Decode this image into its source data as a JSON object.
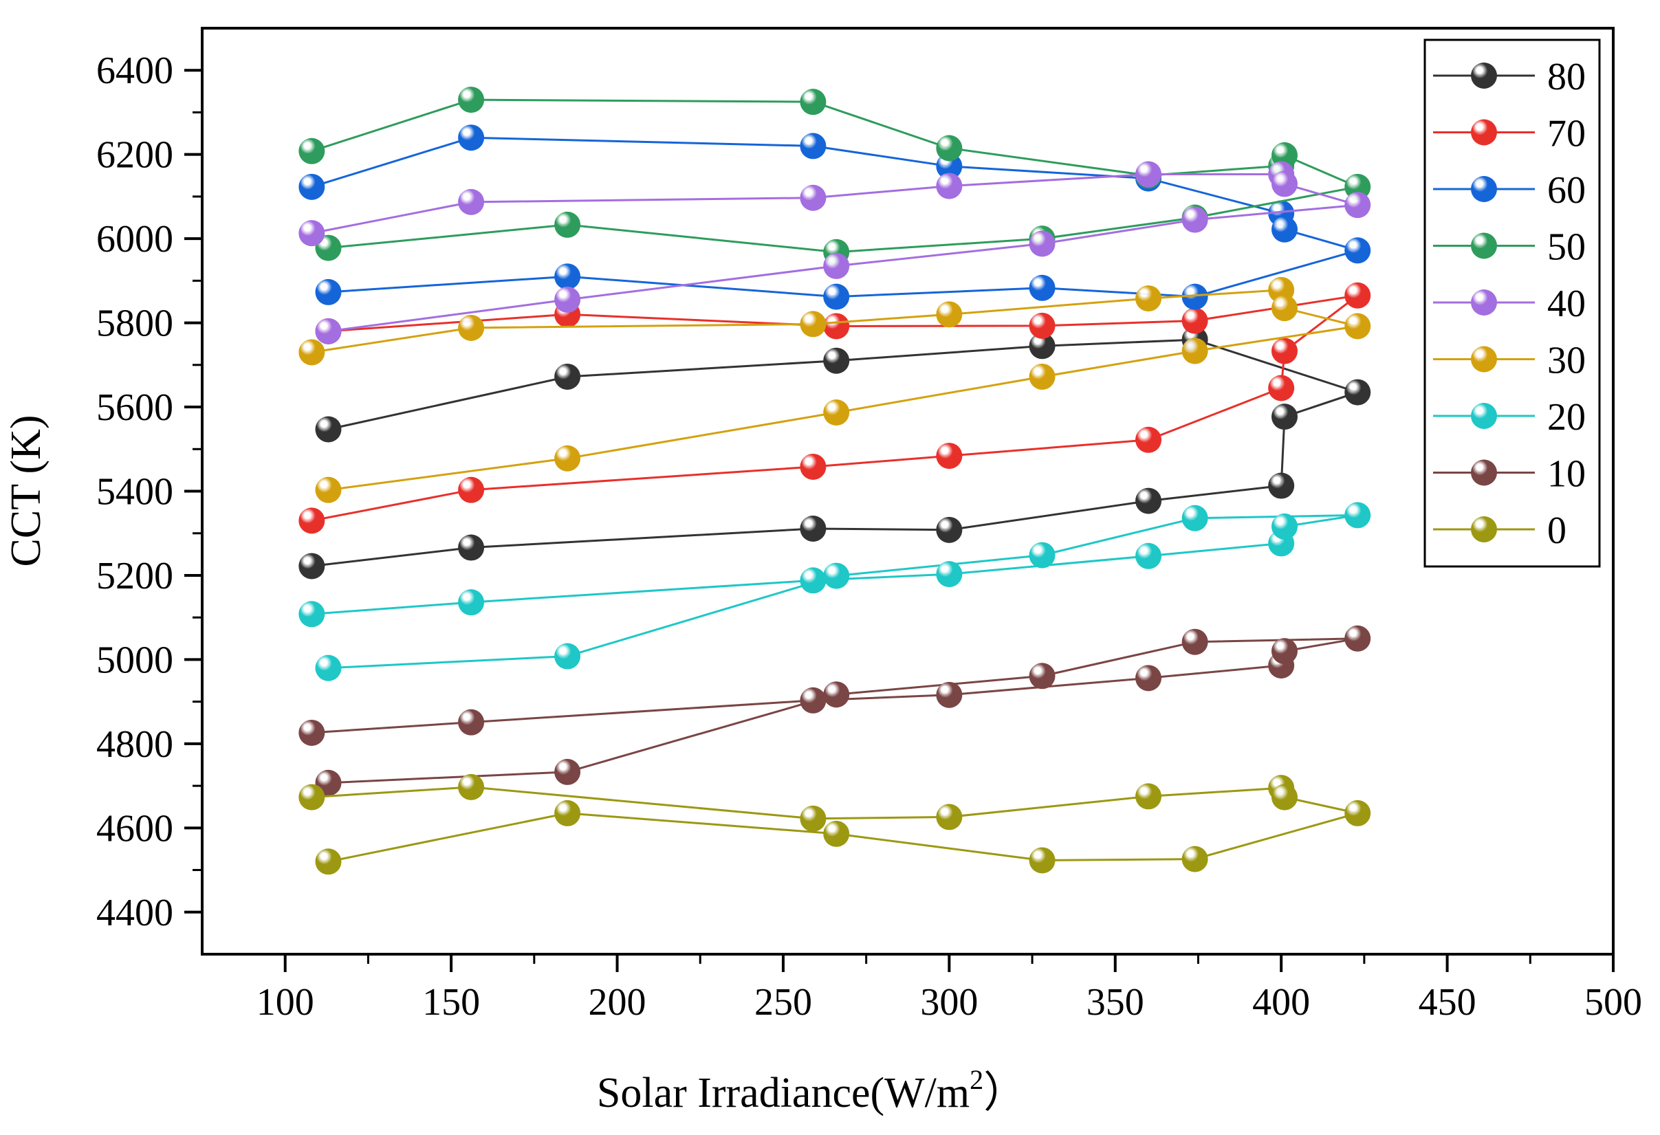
{
  "chart_data": {
    "type": "line",
    "title": "",
    "xlabel": "Solar Irradiance(W/m",
    "xlabel_superscript": "2",
    "xlabel_suffix": "）",
    "ylabel": "CCT (K)",
    "xlim": [
      75,
      500
    ],
    "ylim": [
      4300,
      6500
    ],
    "x_ticks": [
      100,
      150,
      200,
      250,
      300,
      350,
      400,
      450,
      500
    ],
    "y_ticks": [
      4400,
      4600,
      4800,
      5000,
      5200,
      5400,
      5600,
      5800,
      6000,
      6200,
      6400
    ],
    "x_minor_step": 25,
    "y_minor_step": 100,
    "legend_position": "top-right",
    "series": [
      {
        "name": "80",
        "color": "#333333",
        "x": [
          108,
          156,
          259,
          300,
          360,
          400,
          401,
          423,
          374,
          328,
          266,
          185,
          113
        ],
        "y": [
          5222,
          5266,
          5311,
          5308,
          5377,
          5413,
          5577,
          5635,
          5760,
          5745,
          5710,
          5672,
          5547
        ]
      },
      {
        "name": "70",
        "color": "#e8302b",
        "x": [
          108,
          156,
          259,
          300,
          360,
          400,
          401,
          423,
          374,
          328,
          266,
          185,
          113
        ],
        "y": [
          5330,
          5403,
          5458,
          5484,
          5522,
          5645,
          5733,
          5865,
          5805,
          5793,
          5792,
          5820,
          5780
        ]
      },
      {
        "name": "60",
        "color": "#1565d8",
        "x": [
          108,
          156,
          259,
          300,
          360,
          400,
          401,
          423,
          374,
          328,
          266,
          185,
          113
        ],
        "y": [
          6123,
          6240,
          6220,
          6172,
          6143,
          6060,
          6022,
          5972,
          5862,
          5883,
          5862,
          5910,
          5873
        ]
      },
      {
        "name": "50",
        "color": "#2e9c5c",
        "x": [
          108,
          156,
          259,
          300,
          360,
          400,
          401,
          423,
          374,
          328,
          266,
          185,
          113
        ],
        "y": [
          6208,
          6330,
          6325,
          6215,
          6150,
          6173,
          6198,
          6123,
          6050,
          6000,
          5968,
          6033,
          5978
        ]
      },
      {
        "name": "40",
        "color": "#a36ee0",
        "x": [
          108,
          156,
          259,
          300,
          360,
          400,
          401,
          423,
          374,
          328,
          266,
          185,
          113
        ],
        "y": [
          6013,
          6087,
          6097,
          6125,
          6153,
          6153,
          6130,
          6080,
          6045,
          5988,
          5935,
          5855,
          5780
        ]
      },
      {
        "name": "30",
        "color": "#d4a10e",
        "x": [
          108,
          156,
          259,
          300,
          360,
          400,
          401,
          423,
          374,
          328,
          266,
          185,
          113
        ],
        "y": [
          5730,
          5788,
          5797,
          5820,
          5858,
          5878,
          5835,
          5792,
          5733,
          5672,
          5587,
          5478,
          5403
        ]
      },
      {
        "name": "20",
        "color": "#1fc7c7",
        "x": [
          108,
          156,
          259,
          300,
          360,
          400,
          401,
          423,
          374,
          328,
          266,
          185,
          113
        ],
        "y": [
          5108,
          5136,
          5188,
          5203,
          5246,
          5276,
          5316,
          5343,
          5336,
          5248,
          5199,
          5008,
          4980
        ]
      },
      {
        "name": "10",
        "color": "#7a4545",
        "x": [
          108,
          156,
          259,
          300,
          360,
          400,
          401,
          423,
          374,
          328,
          266,
          185,
          113
        ],
        "y": [
          4826,
          4851,
          4903,
          4916,
          4956,
          4986,
          5020,
          5050,
          5042,
          4961,
          4917,
          4733,
          4707
        ]
      },
      {
        "name": "0",
        "color": "#9c9812",
        "x": [
          108,
          156,
          259,
          300,
          360,
          400,
          401,
          423,
          374,
          328,
          266,
          185,
          113
        ],
        "y": [
          4673,
          4697,
          4622,
          4626,
          4675,
          4695,
          4673,
          4635,
          4526,
          4523,
          4586,
          4635,
          4520
        ]
      }
    ]
  }
}
